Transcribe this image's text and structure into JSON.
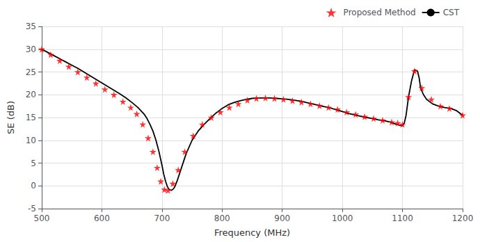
{
  "chart_data": {
    "type": "line",
    "xlabel": "Frequency (MHz)",
    "ylabel": "SE (dB)",
    "xlim": [
      500,
      1200
    ],
    "ylim": [
      -5,
      35
    ],
    "xticks": [
      500,
      600,
      700,
      800,
      900,
      1000,
      1100,
      1200
    ],
    "yticks": [
      -5,
      0,
      5,
      10,
      15,
      20,
      25,
      30,
      35
    ],
    "grid": true,
    "legend": "upper right",
    "series": [
      {
        "name": "Proposed Method",
        "type": "scatter",
        "marker": "star",
        "color": "#ff0000",
        "x": [
          500,
          515,
          530,
          545,
          560,
          575,
          590,
          605,
          620,
          635,
          648,
          658,
          668,
          677,
          685,
          692,
          698,
          704,
          710,
          718,
          727,
          738,
          752,
          767,
          782,
          797,
          812,
          827,
          842,
          857,
          872,
          887,
          902,
          917,
          932,
          947,
          962,
          977,
          992,
          1007,
          1022,
          1037,
          1052,
          1067,
          1082,
          1092,
          1100,
          1110,
          1120,
          1132,
          1148,
          1163,
          1178,
          1200
        ],
        "values": [
          30.0,
          28.8,
          27.5,
          26.2,
          25.0,
          23.8,
          22.5,
          21.2,
          20.0,
          18.5,
          17.2,
          15.8,
          13.5,
          10.5,
          7.5,
          4.0,
          1.0,
          -0.8,
          -1.0,
          0.5,
          3.5,
          7.5,
          11.0,
          13.5,
          15.0,
          16.2,
          17.2,
          18.0,
          18.8,
          19.2,
          19.3,
          19.2,
          19.0,
          18.7,
          18.4,
          18.0,
          17.6,
          17.2,
          16.8,
          16.2,
          15.7,
          15.2,
          14.8,
          14.4,
          14.0,
          13.8,
          13.5,
          19.5,
          25.2,
          21.5,
          19.0,
          17.5,
          17.0,
          15.5
        ]
      },
      {
        "name": "CST",
        "type": "line",
        "line_style": "solid",
        "color": "#000000",
        "x": [
          500,
          510,
          520,
          530,
          540,
          550,
          560,
          570,
          580,
          590,
          600,
          610,
          620,
          630,
          640,
          650,
          660,
          670,
          675,
          680,
          685,
          690,
          695,
          700,
          703,
          706,
          709,
          712,
          715,
          718,
          721,
          725,
          730,
          740,
          750,
          760,
          770,
          780,
          790,
          800,
          810,
          820,
          830,
          840,
          850,
          860,
          870,
          880,
          890,
          900,
          910,
          920,
          930,
          940,
          950,
          960,
          970,
          980,
          990,
          1000,
          1010,
          1020,
          1030,
          1040,
          1050,
          1060,
          1070,
          1080,
          1090,
          1095,
          1100,
          1103,
          1106,
          1110,
          1115,
          1120,
          1125,
          1128,
          1130,
          1135,
          1140,
          1150,
          1160,
          1170,
          1180,
          1190,
          1200
        ],
        "values": [
          30.0,
          29.3,
          28.6,
          27.9,
          27.2,
          26.5,
          25.8,
          25.0,
          24.2,
          23.4,
          22.6,
          21.8,
          21.0,
          20.2,
          19.3,
          18.3,
          17.2,
          15.8,
          14.8,
          13.5,
          12.0,
          10.0,
          7.5,
          4.5,
          2.5,
          1.0,
          -0.2,
          -0.8,
          -1.0,
          -0.8,
          -0.3,
          1.0,
          3.0,
          7.0,
          10.0,
          12.0,
          13.5,
          14.8,
          16.0,
          17.0,
          17.8,
          18.3,
          18.7,
          19.0,
          19.2,
          19.3,
          19.3,
          19.3,
          19.2,
          19.1,
          19.0,
          18.8,
          18.6,
          18.3,
          18.0,
          17.7,
          17.4,
          17.1,
          16.7,
          16.3,
          15.9,
          15.6,
          15.3,
          15.0,
          14.8,
          14.5,
          14.3,
          14.0,
          13.5,
          13.3,
          13.2,
          13.8,
          15.5,
          19.5,
          23.0,
          25.5,
          25.2,
          23.5,
          21.5,
          20.0,
          19.0,
          18.0,
          17.5,
          17.2,
          17.0,
          16.5,
          15.5
        ]
      }
    ]
  }
}
